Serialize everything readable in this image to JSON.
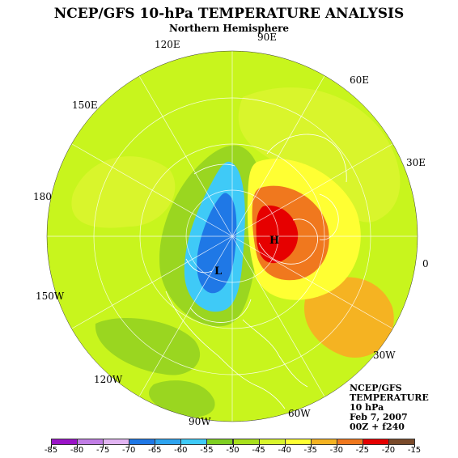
{
  "title": "NCEP/GFS 10-hPa TEMPERATURE ANALYSIS",
  "subtitle": "Northern Hemisphere",
  "longitude_labels": [
    "90E",
    "120E",
    "60E",
    "150E",
    "30E",
    "180",
    "0",
    "150W",
    "30W",
    "120W",
    "60W",
    "90W"
  ],
  "info_lines": [
    "NCEP/GFS",
    "TEMPERATURE",
    "10 hPa",
    "Feb 7, 2007",
    "00Z + f240"
  ],
  "pressure_centers": {
    "low": "L",
    "high": "H"
  },
  "colorbar": {
    "ticks": [
      "-85",
      "-80",
      "-75",
      "-70",
      "-65",
      "-60",
      "-55",
      "-50",
      "-45",
      "-40",
      "-35",
      "-30",
      "-25",
      "-20",
      "-15"
    ],
    "colors": [
      "#9a13c7",
      "#c27ee6",
      "#e2b4f2",
      "#1f78e6",
      "#2ea4f0",
      "#3fcaf7",
      "#7fcf22",
      "#a8e01c",
      "#d9f52c",
      "#ffff33",
      "#f5b322",
      "#f0781e",
      "#e60000",
      "#7a4a2a"
    ],
    "end_color": "#8f8f8f"
  },
  "map_colors": {
    "background": "#c8f51d",
    "band": "#d9f52c",
    "green": "#9ad620",
    "yellow": "#ffff33",
    "orange_light": "#f5b322",
    "orange": "#f0781e",
    "red": "#e60000",
    "blue_light": "#3fcaf7",
    "blue": "#1f78e6",
    "grid": "#ffffff"
  }
}
